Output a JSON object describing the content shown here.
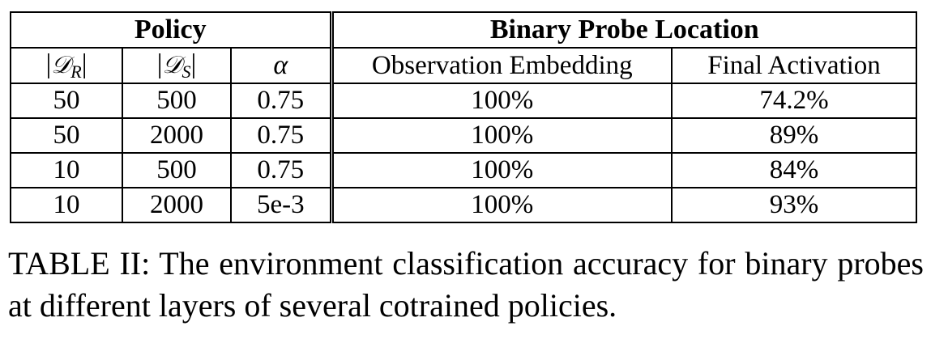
{
  "table": {
    "group_headers": {
      "policy": "Policy",
      "probe_location": "Binary Probe Location"
    },
    "sub_headers": {
      "dr": {
        "bar_left": "|",
        "symbol": "𝒟",
        "subscript": "R",
        "bar_right": "|"
      },
      "ds": {
        "bar_left": "|",
        "symbol": "𝒟",
        "subscript": "S",
        "bar_right": "|"
      },
      "alpha": "α",
      "observation_embedding": "Observation Embedding",
      "final_activation": "Final Activation"
    },
    "rows": [
      {
        "dr": "50",
        "ds": "500",
        "alpha": "0.75",
        "observation_embedding": "100%",
        "final_activation": "74.2%"
      },
      {
        "dr": "50",
        "ds": "2000",
        "alpha": "0.75",
        "observation_embedding": "100%",
        "final_activation": "89%"
      },
      {
        "dr": "10",
        "ds": "500",
        "alpha": "0.75",
        "observation_embedding": "100%",
        "final_activation": "84%"
      },
      {
        "dr": "10",
        "ds": "2000",
        "alpha": "5e-3",
        "observation_embedding": "100%",
        "final_activation": "93%"
      }
    ]
  },
  "caption": "TABLE II: The environment classification accuracy for binary probes at different layers of several cotrained policies."
}
